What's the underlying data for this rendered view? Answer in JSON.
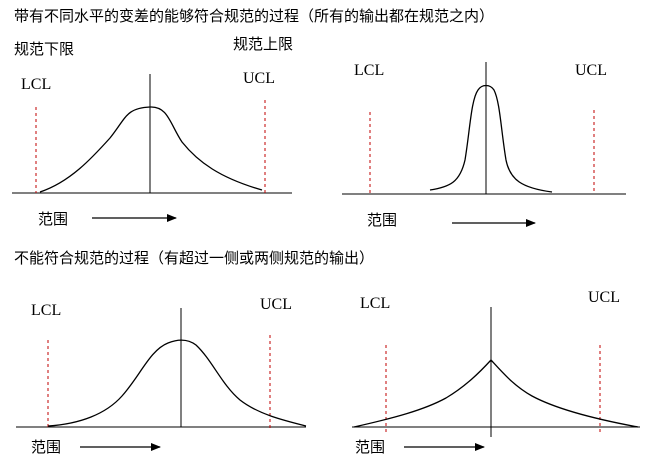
{
  "heading_capable": "带有不同水平的变差的能够符合规范的过程（所有的输出都在规范之内）",
  "label_lower_spec": "规范下限",
  "label_upper_spec": "规范上限",
  "heading_not_capable": "不能符合规范的过程（有超过一侧或两侧规范的输出）",
  "panels": [
    {
      "lcl": "LCL",
      "ucl": "UCL",
      "range": "范围"
    },
    {
      "lcl": "LCL",
      "ucl": "UCL",
      "range": "范围"
    },
    {
      "lcl": "LCL",
      "ucl": "UCL",
      "range": "范围"
    },
    {
      "lcl": "LCL",
      "ucl": "UCL",
      "range": "范围"
    }
  ],
  "colors": {
    "spec_limit_line": "#c00000",
    "curve": "#000000"
  }
}
